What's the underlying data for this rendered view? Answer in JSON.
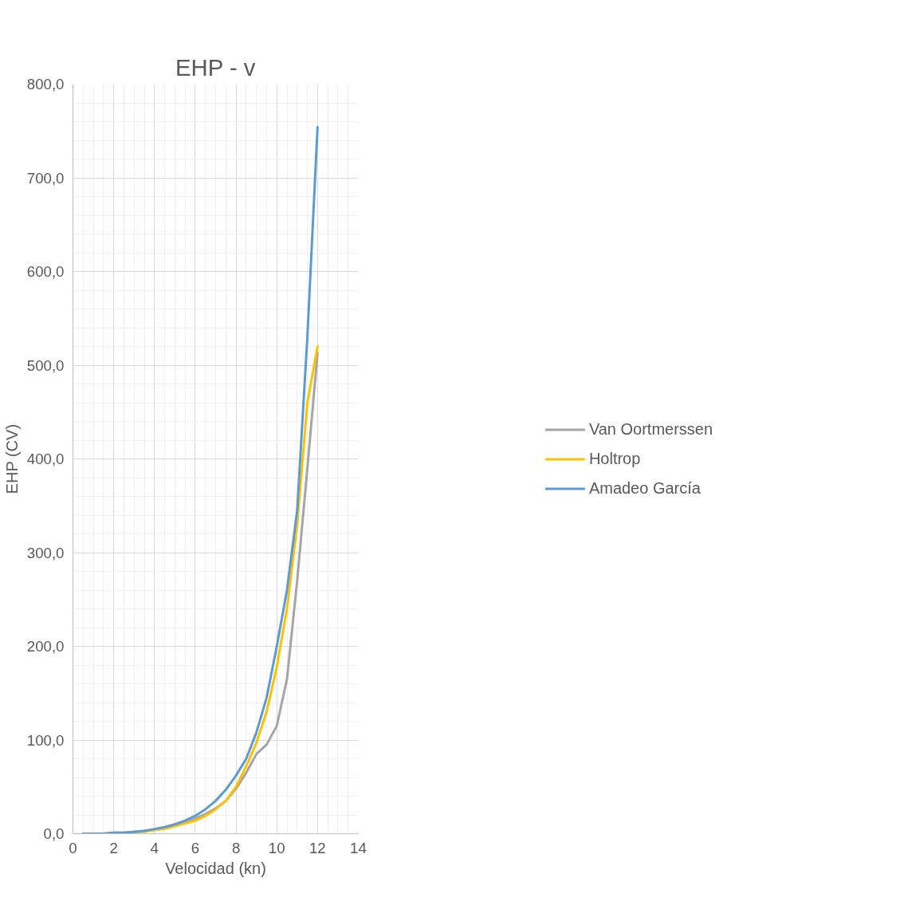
{
  "chart_data": {
    "type": "line",
    "title": "EHP - v",
    "xlabel": "Velocidad (kn)",
    "ylabel": "EHP (CV)",
    "x": [
      0.5,
      1,
      1.5,
      2,
      2.5,
      3,
      3.5,
      4,
      4.5,
      5,
      5.5,
      6,
      6.5,
      7,
      7.5,
      8,
      8.5,
      9,
      9.5,
      10,
      10.5,
      11,
      11.5,
      12
    ],
    "series": [
      {
        "name": "Van Oortmerssen",
        "color": "#a5a5a5",
        "values": [
          0,
          0,
          0,
          1,
          1,
          2,
          3,
          4,
          6,
          9,
          12,
          16,
          21,
          27,
          35,
          48,
          65,
          85,
          95,
          115,
          165,
          270,
          390,
          513
        ]
      },
      {
        "name": "Holtrop",
        "color": "#ffc000",
        "values": [
          null,
          null,
          null,
          null,
          1,
          2,
          2,
          4,
          5,
          8,
          11,
          14,
          19,
          26,
          35,
          50,
          72,
          97,
          130,
          178,
          240,
          330,
          460,
          520
        ]
      },
      {
        "name": "Amadeo García",
        "color": "#5b9bd5",
        "values": [
          0,
          0,
          0,
          1,
          1,
          2,
          3,
          5,
          7,
          10,
          14,
          19,
          26,
          35,
          47,
          62,
          80,
          108,
          145,
          200,
          260,
          345,
          530,
          754
        ]
      }
    ],
    "xlim": [
      0,
      14
    ],
    "xticks": [
      0,
      2,
      4,
      6,
      8,
      10,
      12,
      14
    ],
    "ylim": [
      0,
      800
    ],
    "yticks": [
      {
        "value": 0,
        "label": "0,0"
      },
      {
        "value": 100,
        "label": "100,0"
      },
      {
        "value": 200,
        "label": "200,0"
      },
      {
        "value": 300,
        "label": "300,0"
      },
      {
        "value": 400,
        "label": "400,0"
      },
      {
        "value": 500,
        "label": "500,0"
      },
      {
        "value": 600,
        "label": "600,0"
      },
      {
        "value": 700,
        "label": "700,0"
      },
      {
        "value": 800,
        "label": "800,0"
      }
    ],
    "grid": true,
    "legend": "right",
    "marker": "none",
    "line_style": "solid"
  }
}
